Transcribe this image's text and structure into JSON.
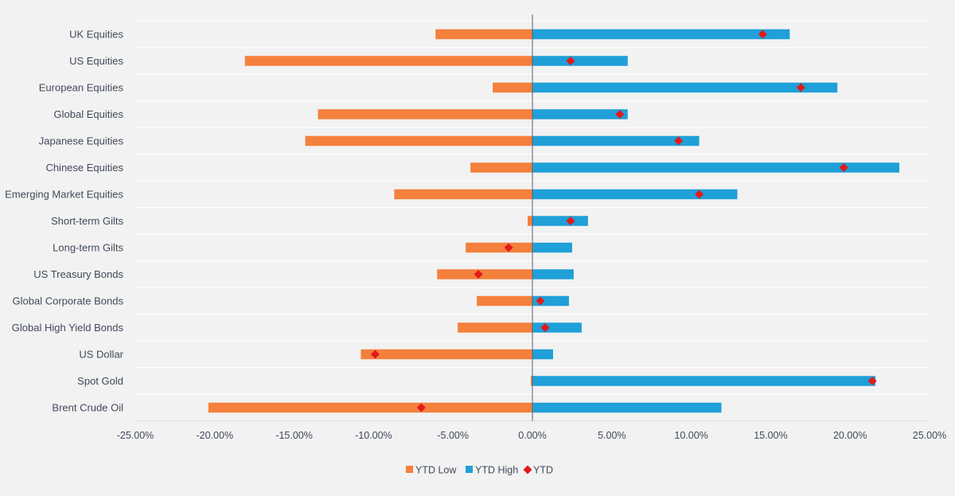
{
  "colors": {
    "ytd_low": "#f4803c",
    "ytd_high": "#1fa0d8",
    "ytd_marker": "#e3191b",
    "gridline": "#ffffff",
    "zero_axis": "#4f5f7a",
    "text": "#404a5a"
  },
  "chart_data": {
    "type": "bar",
    "orientation": "horizontal",
    "categories": [
      "UK Equities",
      "US Equities",
      "European Equities",
      "Global Equities",
      "Japanese Equities",
      "Chinese Equities",
      "Emerging Market Equities",
      "Short-term Gilts",
      "Long-term Gilts",
      "US Treasury Bonds",
      "Global Corporate Bonds",
      "Global High Yield Bonds",
      "US Dollar",
      "Spot Gold",
      "Brent Crude Oil"
    ],
    "series": [
      {
        "name": "YTD Low",
        "kind": "bar",
        "values": [
          -6.1,
          -18.1,
          -2.5,
          -13.5,
          -14.3,
          -3.9,
          -8.7,
          -0.3,
          -4.2,
          -6.0,
          -3.5,
          -4.7,
          -10.8,
          -0.1,
          -20.4
        ]
      },
      {
        "name": "YTD High",
        "kind": "bar",
        "values": [
          16.2,
          6.0,
          19.2,
          6.0,
          10.5,
          23.1,
          12.9,
          3.5,
          2.5,
          2.6,
          2.3,
          3.1,
          1.3,
          21.6,
          11.9
        ]
      },
      {
        "name": "YTD",
        "kind": "marker",
        "values": [
          14.5,
          2.4,
          16.9,
          5.5,
          9.2,
          19.6,
          10.5,
          2.4,
          -1.5,
          -3.4,
          0.5,
          0.8,
          -9.9,
          21.4,
          -7.0
        ]
      }
    ],
    "xlim": [
      -25,
      25
    ],
    "xticks": [
      -25,
      -20,
      -15,
      -10,
      -5,
      0,
      5,
      10,
      15,
      20,
      25
    ],
    "xtick_labels": [
      "-25.00%",
      "-20.00%",
      "-15.00%",
      "-10.00%",
      "-5.00%",
      "0.00%",
      "5.00%",
      "10.00%",
      "15.00%",
      "20.00%",
      "25.00%"
    ],
    "grid": true,
    "legend_position": "bottom-center",
    "legend": [
      {
        "label": "YTD Low",
        "symbol": "square"
      },
      {
        "label": "YTD High",
        "symbol": "square"
      },
      {
        "label": "YTD",
        "symbol": "diamond"
      }
    ]
  }
}
